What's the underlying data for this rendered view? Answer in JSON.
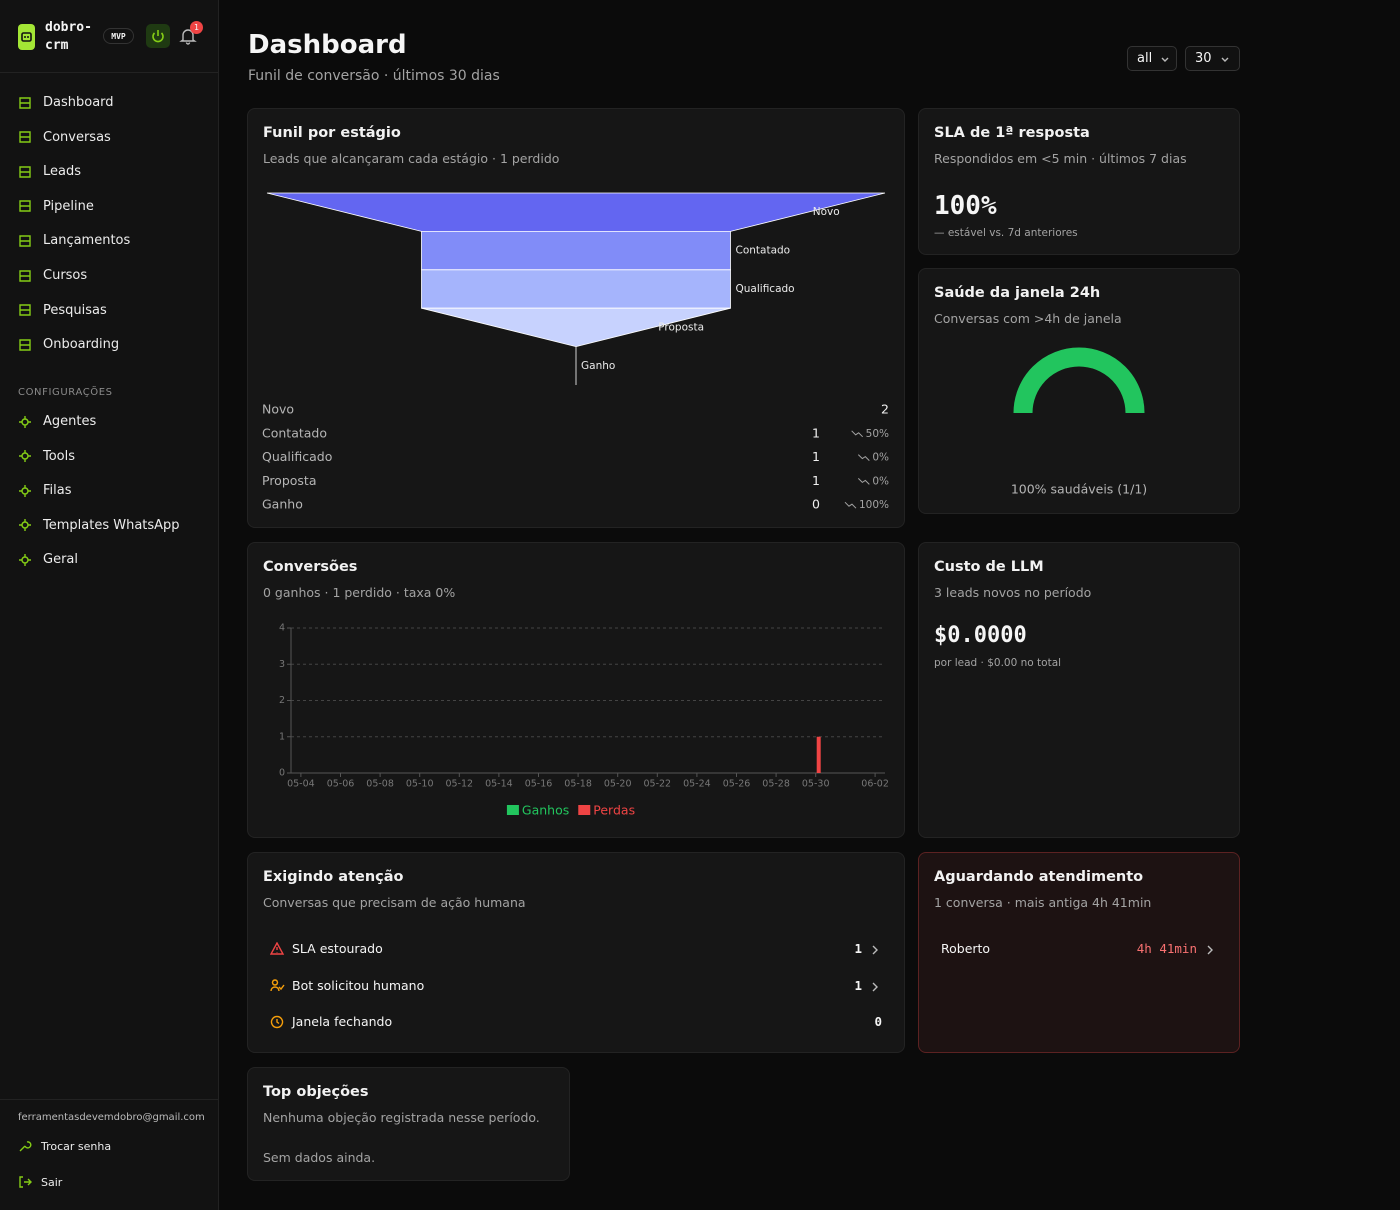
{
  "sidebar": {
    "brand": [
      "dobro-",
      "crm"
    ],
    "badge": "MVP",
    "notification_count": 1,
    "nav": [
      "Dashboard",
      "Conversas",
      "Leads",
      "Pipeline",
      "Lançamentos",
      "Cursos",
      "Pesquisas",
      "Onboarding"
    ],
    "settings_heading": "CONFIGURAÇÕES",
    "settings": [
      "Agentes",
      "Tools",
      "Filas",
      "Templates WhatsApp",
      "Geral"
    ],
    "email": "ferramentasdevemdobro@gmail.com",
    "account": [
      "Trocar senha",
      "Sair"
    ]
  },
  "header": {
    "title": "Dashboard",
    "subtitle": "Funil de conversão · últimos 30 dias",
    "filters": [
      "all",
      "30"
    ]
  },
  "cards": {
    "funnel": {
      "title": "Funil por estágio",
      "subtitle": "Leads que alcançaram cada estágio · 1 perdido",
      "drop_labels": [
        "50%",
        "0%",
        "0%",
        "100%"
      ]
    },
    "sla": {
      "title": "SLA de 1ª resposta",
      "subtitle": "Respondidos em <5 min · últimos 7 dias",
      "value": "100%",
      "note": "— estável vs. 7d anteriores"
    },
    "health": {
      "title": "Saúde da janela 24h",
      "subtitle": "Conversas com >4h de janela"
    },
    "conversions": {
      "title": "Conversões",
      "subtitle": "0 ganhos · 1 perdido · taxa 0%"
    },
    "llm_cost": {
      "title": "Custo de LLM",
      "subtitle": "3 leads novos no período",
      "value": "$0.0000",
      "note": "por lead · $0.00 no total"
    },
    "attention": {
      "title": "Exigindo atenção",
      "subtitle": "Conversas que precisam de ação humana",
      "items": [
        {
          "label": "SLA estourado",
          "count": 1
        },
        {
          "label": "Bot solicitou humano",
          "count": 1
        },
        {
          "label": "Janela fechando",
          "count": 0
        }
      ]
    },
    "waiting": {
      "title": "Aguardando atendimento",
      "subtitle": "1 conversa · mais antiga 4h 41min",
      "items": [
        {
          "name": "Roberto",
          "wait": "4h 41min"
        }
      ]
    },
    "objections": {
      "title": "Top objeções",
      "subtitle": "Nenhuma objeção registrada nesse período.",
      "empty": "Sem dados ainda."
    }
  },
  "chart_data": [
    {
      "type": "funnel",
      "categories": [
        "Novo",
        "Contatado",
        "Qualificado",
        "Proposta",
        "Ganho"
      ],
      "values": [
        2,
        1,
        1,
        1,
        0
      ],
      "colors": [
        "#6366f1",
        "#818cf8",
        "#a5b4fc",
        "#c7d2fe",
        "#e0e7ff"
      ]
    },
    {
      "type": "bar",
      "categories": [
        "05-04",
        null,
        "05-06",
        null,
        "05-08",
        null,
        "05-10",
        null,
        "05-12",
        null,
        "05-14",
        null,
        "05-16",
        null,
        "05-18",
        null,
        "05-20",
        null,
        "05-22",
        null,
        "05-24",
        null,
        "05-26",
        null,
        "05-28",
        null,
        "05-30",
        null,
        null,
        "06-02"
      ],
      "series": [
        {
          "name": "Ganhos",
          "color": "#22c55e",
          "values": [
            0,
            0,
            0,
            0,
            0,
            0,
            0,
            0,
            0,
            0,
            0,
            0,
            0,
            0,
            0,
            0,
            0,
            0,
            0,
            0,
            0,
            0,
            0,
            0,
            0,
            0,
            0,
            0,
            0,
            0
          ]
        },
        {
          "name": "Perdas",
          "color": "#ef4444",
          "values": [
            0,
            0,
            0,
            0,
            0,
            0,
            0,
            0,
            0,
            0,
            0,
            0,
            0,
            0,
            0,
            0,
            0,
            0,
            0,
            0,
            0,
            0,
            0,
            0,
            0,
            0,
            1,
            0,
            0,
            0
          ]
        }
      ],
      "ylim": [
        0,
        4
      ],
      "yticks": [
        0,
        1,
        2,
        3,
        4
      ],
      "grid": true,
      "legend": "bottom"
    },
    {
      "type": "gauge",
      "values": [
        100
      ],
      "value_labels": [
        "100% saudáveis (1/1)"
      ],
      "ylim": [
        0,
        100
      ],
      "color": "#22c55e"
    }
  ]
}
